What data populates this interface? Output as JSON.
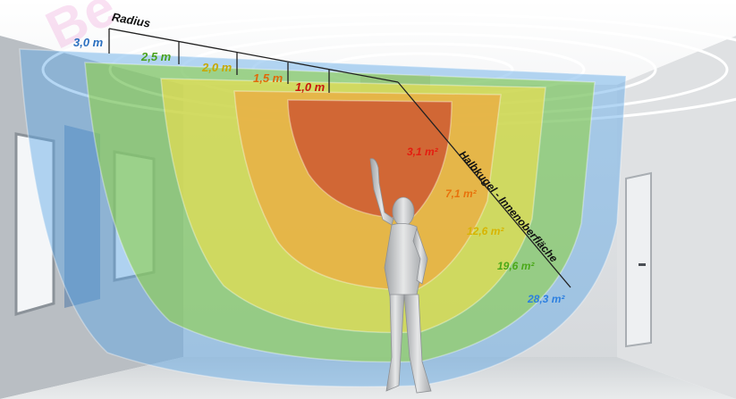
{
  "diagram": {
    "watermark": "Be",
    "radius_title": "Radius",
    "radii": [
      {
        "label": "3,0 m",
        "color": "#3a7fd0"
      },
      {
        "label": "2,5 m",
        "color": "#5fb82a"
      },
      {
        "label": "2,0 m",
        "color": "#d9b800"
      },
      {
        "label": "1,5 m",
        "color": "#ee7a10"
      },
      {
        "label": "1,0 m",
        "color": "#d81e12"
      }
    ],
    "areas": [
      {
        "label": "3,1 m²",
        "color": "#e41c10"
      },
      {
        "label": "7,1 m²",
        "color": "#ee7a10"
      },
      {
        "label": "12,6 m²",
        "color": "#e0bc00"
      },
      {
        "label": "19,6 m²",
        "color": "#54b21e"
      },
      {
        "label": "28,3 m²",
        "color": "#2c7fe0"
      }
    ],
    "diagonal_label": "Halbkugel - Innenoberfläche"
  }
}
